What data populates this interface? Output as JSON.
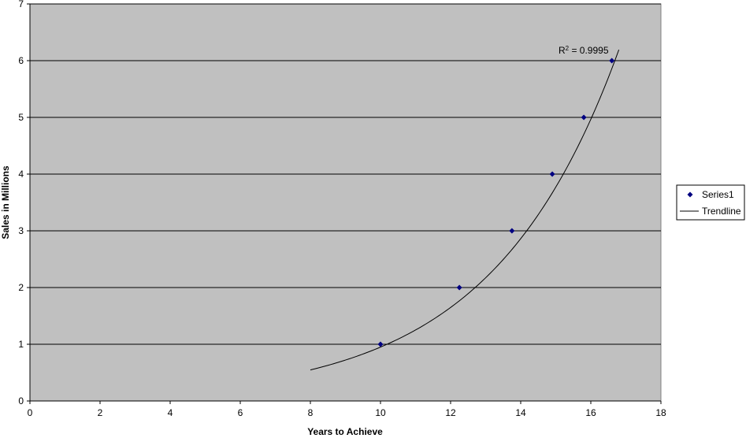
{
  "chart_data": {
    "type": "scatter",
    "xlabel": "Years to Achieve",
    "ylabel": "Sales in Millions",
    "xlim": [
      0,
      18
    ],
    "ylim": [
      0,
      7
    ],
    "x_ticks": [
      0,
      2,
      4,
      6,
      8,
      10,
      12,
      14,
      16,
      18
    ],
    "y_ticks": [
      0,
      1,
      2,
      3,
      4,
      5,
      6,
      7
    ],
    "grid": "horizontal",
    "plot_background": "#c0c0c0",
    "legend_position": "right",
    "series": [
      {
        "name": "Series1",
        "marker": "diamond",
        "color": "#000080",
        "x": [
          10.0,
          12.25,
          13.75,
          14.9,
          15.8,
          16.6
        ],
        "y": [
          1,
          2,
          3,
          4,
          5,
          6
        ]
      }
    ],
    "trendline": {
      "name": "Trendline",
      "type": "exponential",
      "color": "#000000",
      "x_range": [
        8,
        16.8
      ],
      "a": 0.0603,
      "b": 0.2757,
      "annotation_prefix": "R",
      "annotation_exponent": "2",
      "annotation_suffix": " = 0.9995"
    }
  }
}
